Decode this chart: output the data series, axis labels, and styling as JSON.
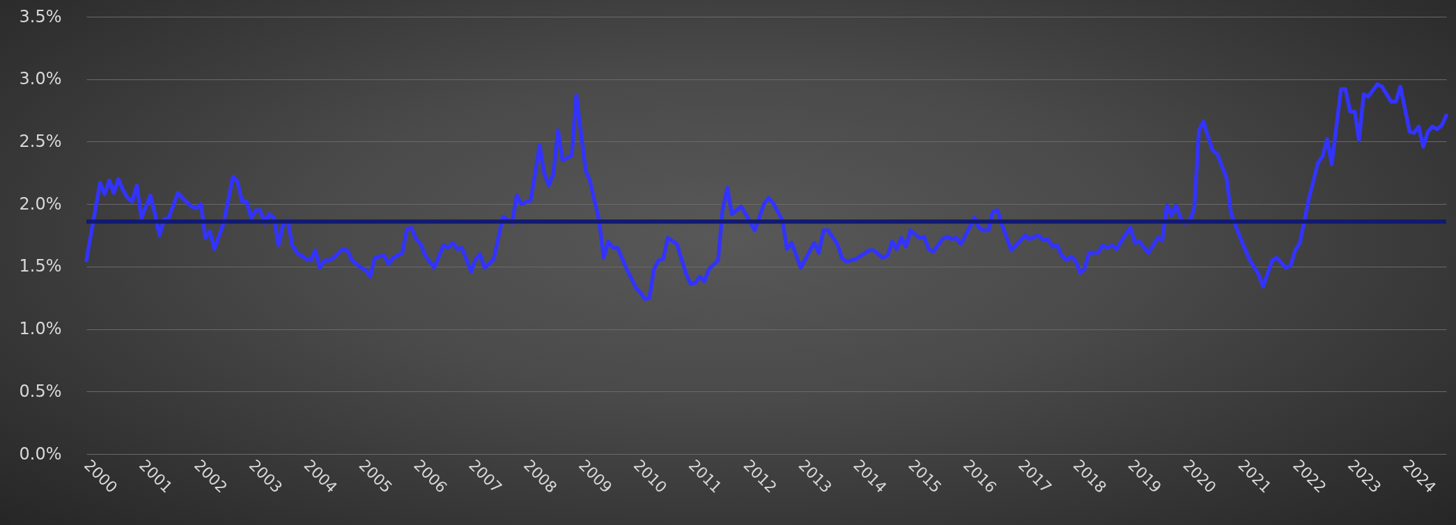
{
  "chart_data": {
    "type": "line",
    "x": [
      "2000-01",
      "2000-04",
      "2000-05",
      "2000-06",
      "2000-07",
      "2000-08",
      "2000-09",
      "2000-10",
      "2000-11",
      "2000-12",
      "2001-01",
      "2001-03",
      "2001-04",
      "2001-05",
      "2001-06",
      "2001-07",
      "2001-09",
      "2001-10",
      "2001-12",
      "2002-01",
      "2002-02",
      "2002-03",
      "2002-04",
      "2002-05",
      "2002-07",
      "2002-09",
      "2002-10",
      "2002-11",
      "2002-12",
      "2003-01",
      "2003-02",
      "2003-03",
      "2003-04",
      "2003-05",
      "2003-06",
      "2003-07",
      "2003-08",
      "2003-09",
      "2003-10",
      "2003-11",
      "2004-01",
      "2004-02",
      "2004-03",
      "2004-04",
      "2004-05",
      "2004-06",
      "2004-07",
      "2004-09",
      "2004-10",
      "2004-11",
      "2005-01",
      "2005-02",
      "2005-03",
      "2005-04",
      "2005-06",
      "2005-07",
      "2005-08",
      "2005-09",
      "2005-10",
      "2005-11",
      "2005-12",
      "2006-01",
      "2006-02",
      "2006-03",
      "2006-05",
      "2006-07",
      "2006-08",
      "2006-09",
      "2006-10",
      "2006-11",
      "2007-01",
      "2007-02",
      "2007-03",
      "2007-04",
      "2007-06",
      "2007-08",
      "2007-10",
      "2007-11",
      "2007-12",
      "2008-02",
      "2008-04",
      "2008-05",
      "2008-06",
      "2008-07",
      "2008-08",
      "2008-09",
      "2008-11",
      "2008-12",
      "2009-02",
      "2009-03",
      "2009-05",
      "2009-06",
      "2009-07",
      "2009-08",
      "2009-09",
      "2009-11",
      "2010-01",
      "2010-02",
      "2010-03",
      "2010-04",
      "2010-05",
      "2010-06",
      "2010-07",
      "2010-08",
      "2010-10",
      "2010-12",
      "2011-01",
      "2011-02",
      "2011-03",
      "2011-04",
      "2011-05",
      "2011-07",
      "2011-08",
      "2011-09",
      "2011-10",
      "2011-12",
      "2012-01",
      "2012-03",
      "2012-05",
      "2012-06",
      "2012-07",
      "2012-09",
      "2012-10",
      "2012-11",
      "2013-01",
      "2013-04",
      "2013-05",
      "2013-06",
      "2013-07",
      "2013-09",
      "2013-10",
      "2013-11",
      "2014-01",
      "2014-04",
      "2014-05",
      "2014-07",
      "2014-08",
      "2014-09",
      "2014-10",
      "2014-11",
      "2014-12",
      "2015-01",
      "2015-03",
      "2015-04",
      "2015-05",
      "2015-06",
      "2015-08",
      "2015-09",
      "2015-10",
      "2015-11",
      "2015-12",
      "2016-03",
      "2016-04",
      "2016-05",
      "2016-06",
      "2016-07",
      "2016-08",
      "2016-09",
      "2016-11",
      "2017-01",
      "2017-02",
      "2017-03",
      "2017-05",
      "2017-06",
      "2017-07",
      "2017-08",
      "2017-09",
      "2017-10",
      "2017-11",
      "2017-12",
      "2018-01",
      "2018-02",
      "2018-03",
      "2018-04",
      "2018-06",
      "2018-07",
      "2018-08",
      "2018-09",
      "2018-10",
      "2018-12",
      "2019-01",
      "2019-02",
      "2019-03",
      "2019-05",
      "2019-07",
      "2019-08",
      "2019-09",
      "2019-10",
      "2019-11",
      "2019-12",
      "2020-01",
      "2020-02",
      "2020-03",
      "2020-04",
      "2020-05",
      "2020-06",
      "2020-07",
      "2020-08",
      "2020-10",
      "2020-11",
      "2021-01",
      "2021-03",
      "2021-05",
      "2021-06",
      "2021-08",
      "2021-09",
      "2021-11",
      "2021-12",
      "2022-01",
      "2022-02",
      "2022-04",
      "2022-06",
      "2022-07",
      "2022-08",
      "2022-09",
      "2022-11",
      "2022-12",
      "2023-01",
      "2023-02",
      "2023-03",
      "2023-04",
      "2023-05",
      "2023-07",
      "2023-08",
      "2023-10",
      "2023-11",
      "2023-12",
      "2024-02",
      "2024-03",
      "2024-04",
      "2024-05",
      "2024-06",
      "2024-07",
      "2024-08",
      "2024-09",
      "2024-10"
    ],
    "series": [
      {
        "color": "#3333ff",
        "values": [
          1.55,
          2.17,
          2.08,
          2.19,
          2.09,
          2.2,
          2.11,
          2.05,
          2.02,
          2.15,
          1.89,
          2.07,
          1.92,
          1.75,
          1.88,
          1.89,
          2.09,
          2.05,
          1.98,
          1.97,
          2.0,
          1.73,
          1.78,
          1.64,
          1.85,
          2.22,
          2.18,
          2.02,
          2.02,
          1.89,
          1.95,
          1.95,
          1.85,
          1.92,
          1.89,
          1.67,
          1.84,
          1.87,
          1.67,
          1.61,
          1.56,
          1.55,
          1.63,
          1.49,
          1.55,
          1.55,
          1.57,
          1.64,
          1.63,
          1.55,
          1.49,
          1.47,
          1.42,
          1.57,
          1.59,
          1.52,
          1.57,
          1.59,
          1.61,
          1.8,
          1.81,
          1.72,
          1.68,
          1.59,
          1.49,
          1.67,
          1.65,
          1.69,
          1.64,
          1.65,
          1.46,
          1.56,
          1.6,
          1.49,
          1.56,
          1.9,
          1.85,
          2.07,
          2.0,
          2.03,
          2.47,
          2.25,
          2.15,
          2.24,
          2.59,
          2.35,
          2.39,
          2.87,
          2.27,
          2.19,
          1.87,
          1.57,
          1.7,
          1.65,
          1.65,
          1.48,
          1.33,
          1.29,
          1.24,
          1.25,
          1.48,
          1.55,
          1.56,
          1.73,
          1.68,
          1.44,
          1.36,
          1.37,
          1.42,
          1.38,
          1.48,
          1.55,
          1.96,
          2.13,
          1.92,
          1.98,
          1.92,
          1.79,
          2.0,
          2.05,
          2.01,
          1.87,
          1.64,
          1.69,
          1.49,
          1.69,
          1.61,
          1.79,
          1.79,
          1.68,
          1.57,
          1.54,
          1.56,
          1.63,
          1.63,
          1.57,
          1.59,
          1.7,
          1.64,
          1.73,
          1.66,
          1.79,
          1.73,
          1.74,
          1.64,
          1.62,
          1.72,
          1.74,
          1.72,
          1.73,
          1.68,
          1.89,
          1.81,
          1.79,
          1.79,
          1.94,
          1.95,
          1.83,
          1.63,
          1.71,
          1.75,
          1.72,
          1.75,
          1.71,
          1.72,
          1.66,
          1.67,
          1.59,
          1.55,
          1.58,
          1.55,
          1.45,
          1.48,
          1.61,
          1.61,
          1.67,
          1.65,
          1.67,
          1.64,
          1.76,
          1.81,
          1.69,
          1.7,
          1.61,
          1.73,
          1.71,
          1.99,
          1.91,
          1.99,
          1.89,
          1.85,
          1.87,
          1.97,
          2.59,
          2.66,
          2.54,
          2.43,
          2.4,
          2.21,
          1.92,
          1.73,
          1.56,
          1.44,
          1.34,
          1.55,
          1.57,
          1.49,
          1.51,
          1.63,
          1.69,
          2.04,
          2.33,
          2.38,
          2.52,
          2.32,
          2.92,
          2.92,
          2.74,
          2.74,
          2.51,
          2.88,
          2.86,
          2.96,
          2.94,
          2.82,
          2.82,
          2.94,
          2.58,
          2.57,
          2.62,
          2.46,
          2.58,
          2.62,
          2.6,
          2.63,
          2.71
        ]
      }
    ],
    "xlim": [
      "2000-01",
      "2024-10"
    ],
    "xticks": [
      "2000",
      "2001",
      "2002",
      "2003",
      "2004",
      "2005",
      "2006",
      "2007",
      "2008",
      "2009",
      "2010",
      "2011",
      "2012",
      "2013",
      "2014",
      "2015",
      "2016",
      "2017",
      "2018",
      "2019",
      "2020",
      "2021",
      "2022",
      "2023",
      "2024"
    ],
    "ylim": [
      0,
      3.5
    ],
    "yticks": [
      {
        "value": 0,
        "label": "0.0%"
      },
      {
        "value": 0.5,
        "label": "0.5%"
      },
      {
        "value": 1,
        "label": "1.0%"
      },
      {
        "value": 1.5,
        "label": "1.5%"
      },
      {
        "value": 2,
        "label": "2.0%"
      },
      {
        "value": 2.5,
        "label": "2.5%"
      },
      {
        "value": 3,
        "label": "3.0%"
      },
      {
        "value": 3.5,
        "label": "3.5%"
      }
    ],
    "ref_lines": [
      {
        "axis": "y",
        "value": 1.86,
        "color": "#111a70"
      }
    ],
    "grid": "y"
  }
}
